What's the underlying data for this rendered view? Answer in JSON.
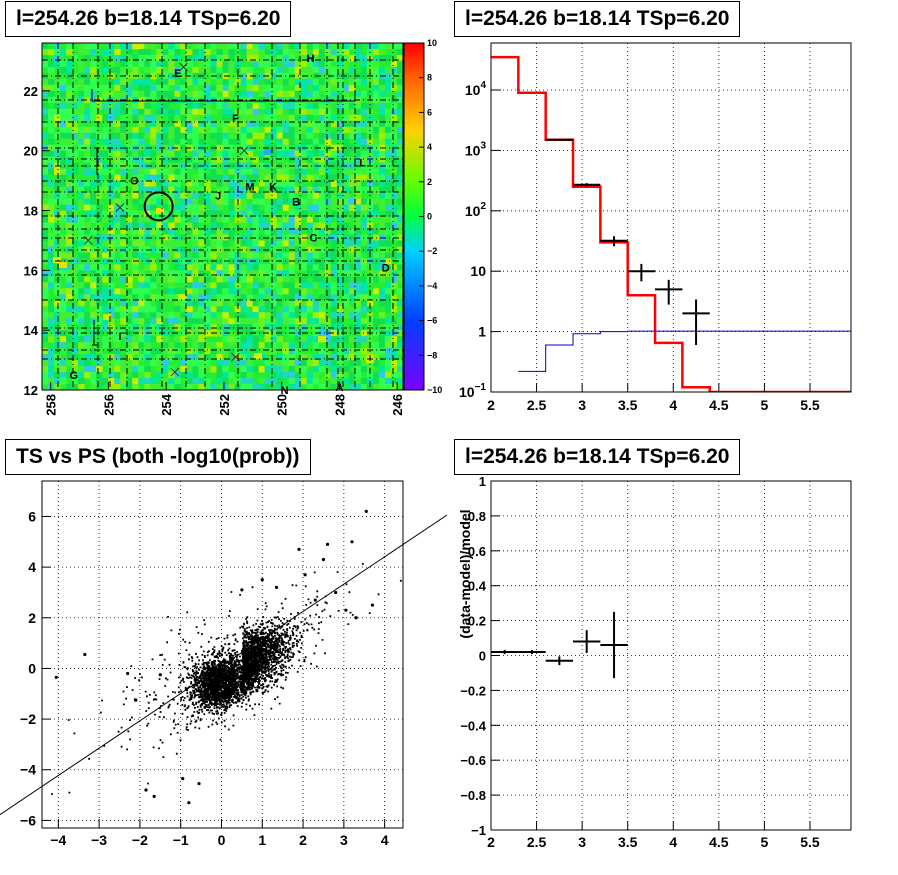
{
  "pads": {
    "skymap": {
      "title": "l=254.26 b=18.14 TSp=6.20",
      "x_ticks": [
        "258",
        "256",
        "254",
        "252",
        "250",
        "248",
        "246"
      ],
      "y_ticks": [
        "12",
        "14",
        "16",
        "18",
        "20",
        "22"
      ],
      "colorbar_ticks": [
        "10",
        "8",
        "6",
        "4",
        "2",
        "0",
        "−2",
        "−4",
        "−6",
        "−8",
        "−10"
      ],
      "labels": [
        {
          "t": "H",
          "l": 249.0,
          "b": 23.1
        },
        {
          "t": "E",
          "l": 253.6,
          "b": 22.6
        },
        {
          "t": "F",
          "l": 251.6,
          "b": 21.1
        },
        {
          "t": "L",
          "l": 247.2,
          "b": 19.6
        },
        {
          "t": "O",
          "l": 255.1,
          "b": 19.0
        },
        {
          "t": "M",
          "l": 251.1,
          "b": 18.8
        },
        {
          "t": "K",
          "l": 250.3,
          "b": 18.8
        },
        {
          "t": "J",
          "l": 252.2,
          "b": 18.5
        },
        {
          "t": "B",
          "l": 249.5,
          "b": 18.3
        },
        {
          "t": "C",
          "l": 248.9,
          "b": 17.1
        },
        {
          "t": "D",
          "l": 246.4,
          "b": 16.1
        },
        {
          "t": "I",
          "l": 255.6,
          "b": 13.8
        },
        {
          "t": "G",
          "l": 257.2,
          "b": 12.5
        },
        {
          "t": "N",
          "l": 249.9,
          "b": 12.0
        },
        {
          "t": "A",
          "l": 248.0,
          "b": 12.1
        }
      ],
      "crosses": [
        {
          "l": 253.4,
          "b": 22.8
        },
        {
          "l": 251.3,
          "b": 20.0
        },
        {
          "l": 255.6,
          "b": 18.1
        },
        {
          "l": 256.7,
          "b": 17.0
        },
        {
          "l": 253.7,
          "b": 12.6
        },
        {
          "l": 251.6,
          "b": 13.1
        }
      ],
      "circle": {
        "l": 254.26,
        "b": 18.14
      }
    },
    "spectrum": {
      "title": "l=254.26 b=18.14 TSp=6.20",
      "x_ticks": [
        "2",
        "2.5",
        "3",
        "3.5",
        "4",
        "4.5",
        "5",
        "5.5"
      ],
      "y_ticks": [
        "10^-1",
        "1",
        "10",
        "10^2",
        "10^3",
        "10^4"
      ]
    },
    "scatter": {
      "title": "TS vs PS (both -log10(prob))",
      "x_ticks": [
        "−4",
        "−3",
        "−2",
        "−1",
        "0",
        "1",
        "2",
        "3",
        "4"
      ],
      "y_ticks": [
        "−6",
        "−4",
        "−2",
        "0",
        "2",
        "4",
        "6"
      ]
    },
    "residual": {
      "title": "l=254.26 b=18.14 TSp=6.20",
      "ylabel": "(data-model)/model",
      "x_ticks": [
        "2",
        "2.5",
        "3",
        "3.5",
        "4",
        "4.5",
        "5",
        "5.5"
      ],
      "y_ticks": [
        "−1",
        "−0.8",
        "−0.6",
        "−0.4",
        "−0.2",
        "0",
        "0.2",
        "0.4",
        "0.6",
        "0.8",
        "1"
      ]
    }
  },
  "chart_data": [
    {
      "type": "heatmap",
      "title": "l=254.26 b=18.14 TSp=6.20",
      "xlim": [
        258.3,
        245.8
      ],
      "ylim": [
        12.0,
        23.6
      ],
      "zlim": [
        -10,
        10
      ],
      "colors": {
        "low": "#7b00ff",
        "mid": "#00ff40",
        "high": "#ff0000"
      }
    },
    {
      "type": "line",
      "title": "l=254.26 b=18.14 TSp=6.20",
      "xlim": [
        2,
        5.95
      ],
      "ylim": [
        0.1,
        60000
      ],
      "log_y": true,
      "grid": true,
      "series": [
        {
          "color": "#ff0000",
          "edges": [
            2,
            2.3,
            2.6,
            2.9,
            3.2,
            3.5,
            3.8,
            4.1,
            4.4,
            5.95
          ],
          "values": [
            35000,
            9000,
            1500,
            250,
            30,
            4,
            0.65,
            0.12,
            0.1
          ]
        },
        {
          "color": "#0000cc",
          "edges": [
            2.3,
            2.6,
            2.9,
            3.2,
            3.5,
            5.95
          ],
          "values": [
            0.22,
            0.6,
            0.92,
            1.0,
            1.02
          ]
        },
        {
          "color": "#000000",
          "kind": "points",
          "points": [
            {
              "x": 2.75,
              "xerr": 0.15,
              "y": 1500,
              "yerr": 40
            },
            {
              "x": 3.05,
              "xerr": 0.15,
              "y": 270,
              "yerr": 17
            },
            {
              "x": 3.35,
              "xerr": 0.15,
              "y": 32,
              "yerr": 6
            },
            {
              "x": 3.65,
              "xerr": 0.15,
              "y": 10,
              "yerr": 3.2
            },
            {
              "x": 3.95,
              "xerr": 0.15,
              "y": 5,
              "yerr": 2.2
            },
            {
              "x": 4.25,
              "xerr": 0.15,
              "y": 2,
              "yerr": 1.4
            }
          ]
        }
      ]
    },
    {
      "type": "scatter",
      "title": "TS vs PS (both -log10(prob))",
      "xlim": [
        -4.4,
        4.45
      ],
      "ylim": [
        -6.3,
        7.4
      ],
      "grid": true,
      "n_points": 4000,
      "fit_line": {
        "x1": -4.4,
        "y1": -4.15,
        "x2": 4.45,
        "y2": 4.4
      },
      "outliers": [
        [
          3.55,
          6.2
        ],
        [
          3.2,
          5.0
        ],
        [
          2.6,
          4.9
        ],
        [
          1.9,
          4.7
        ],
        [
          2.5,
          4.3
        ],
        [
          3.7,
          2.5
        ],
        [
          3.3,
          2.0
        ],
        [
          -4.05,
          -0.35
        ],
        [
          -3.35,
          0.55
        ],
        [
          -2.3,
          -0.2
        ],
        [
          -1.85,
          -4.8
        ],
        [
          -1.65,
          -5.05
        ],
        [
          -0.8,
          -5.3
        ],
        [
          -0.95,
          -4.35
        ],
        [
          -1.5,
          -0.25
        ],
        [
          -2.1,
          -1.25
        ],
        [
          -0.55,
          -4.55
        ],
        [
          1.35,
          3.2
        ],
        [
          2.05,
          3.7
        ],
        [
          0.5,
          3.1
        ],
        [
          1.0,
          3.5
        ],
        [
          2.3,
          2.7
        ],
        [
          2.8,
          3.0
        ],
        [
          3.05,
          2.3
        ]
      ]
    },
    {
      "type": "scatter",
      "title": "l=254.26 b=18.14 TSp=6.20",
      "ylabel": "(data-model)/model",
      "xlim": [
        2,
        5.95
      ],
      "ylim": [
        -1,
        1
      ],
      "grid": true,
      "points": [
        {
          "x": 2.15,
          "xerr": 0.15,
          "y": 0.02,
          "yerr": 0.012
        },
        {
          "x": 2.45,
          "xerr": 0.15,
          "y": 0.02,
          "yerr": 0.012
        },
        {
          "x": 2.75,
          "xerr": 0.15,
          "y": -0.03,
          "yerr": 0.025
        },
        {
          "x": 3.05,
          "xerr": 0.15,
          "y": 0.08,
          "yerr": 0.065
        },
        {
          "x": 3.35,
          "xerr": 0.15,
          "y": 0.06,
          "yerr": 0.19
        }
      ]
    }
  ]
}
